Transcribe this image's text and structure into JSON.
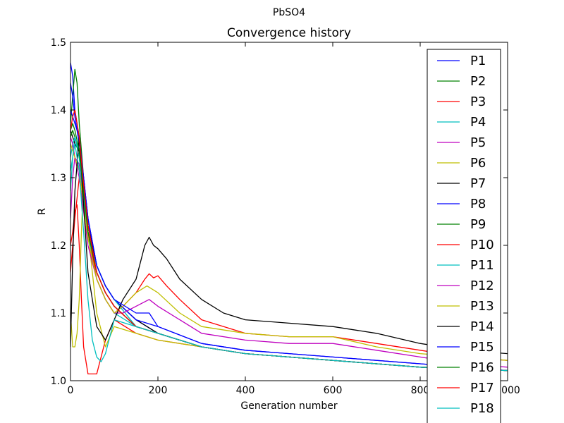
{
  "chart_data": {
    "type": "line",
    "suptitle": "PbSO4",
    "title": "Convergence history",
    "xlabel": "Generation number",
    "ylabel": "R",
    "xlim": [
      0,
      1000
    ],
    "ylim": [
      1.0,
      1.5
    ],
    "xticks": [
      0,
      200,
      400,
      600,
      800,
      1000
    ],
    "xtick_labels": [
      "0",
      "200",
      "400",
      "600",
      "800",
      "1000"
    ],
    "yticks": [
      1.0,
      1.1,
      1.2,
      1.3,
      1.4,
      1.5
    ],
    "ytick_labels": [
      "1.0",
      "1.1",
      "1.2",
      "1.3",
      "1.4",
      "1.5"
    ],
    "grid": false,
    "legend_position": "right, overlapping plot edge",
    "series": [
      {
        "name": "P1",
        "color": "#0000ff",
        "x": [
          0,
          5,
          10,
          20,
          30,
          40,
          60,
          80,
          100,
          150,
          200,
          300,
          400,
          600,
          800,
          1000
        ],
        "y": [
          1.47,
          1.45,
          1.4,
          1.36,
          1.3,
          1.24,
          1.17,
          1.14,
          1.12,
          1.09,
          1.07,
          1.05,
          1.04,
          1.03,
          1.02,
          1.015
        ]
      },
      {
        "name": "P2",
        "color": "#008000",
        "x": [
          0,
          5,
          10,
          15,
          20,
          30,
          40,
          60,
          80,
          100,
          150,
          200,
          300,
          400,
          600,
          800,
          1000
        ],
        "y": [
          1.38,
          1.42,
          1.46,
          1.44,
          1.38,
          1.3,
          1.22,
          1.16,
          1.13,
          1.11,
          1.08,
          1.07,
          1.05,
          1.04,
          1.03,
          1.02,
          1.015
        ]
      },
      {
        "name": "P3",
        "color": "#ff0000",
        "x": [
          0,
          5,
          10,
          15,
          20,
          25,
          30,
          40,
          60,
          80,
          100,
          150,
          200,
          300,
          400,
          600,
          800,
          1000
        ],
        "y": [
          1.2,
          1.22,
          1.25,
          1.26,
          1.2,
          1.12,
          1.05,
          1.01,
          1.01,
          1.06,
          1.09,
          1.07,
          1.06,
          1.05,
          1.04,
          1.03,
          1.02,
          1.015
        ]
      },
      {
        "name": "P4",
        "color": "#00bfbf",
        "x": [
          0,
          5,
          10,
          20,
          30,
          40,
          60,
          80,
          100,
          150,
          200,
          300,
          400,
          600,
          800,
          1000
        ],
        "y": [
          1.28,
          1.33,
          1.36,
          1.34,
          1.28,
          1.22,
          1.15,
          1.12,
          1.1,
          1.08,
          1.07,
          1.05,
          1.04,
          1.03,
          1.02,
          1.015
        ]
      },
      {
        "name": "P5",
        "color": "#bf00bf",
        "x": [
          0,
          5,
          10,
          20,
          30,
          40,
          60,
          80,
          100,
          150,
          200,
          300,
          400,
          600,
          800,
          1000
        ],
        "y": [
          1.24,
          1.3,
          1.33,
          1.32,
          1.27,
          1.22,
          1.16,
          1.13,
          1.11,
          1.08,
          1.07,
          1.05,
          1.04,
          1.03,
          1.02,
          1.015
        ]
      },
      {
        "name": "P6",
        "color": "#bfbf00",
        "x": [
          0,
          5,
          10,
          15,
          20,
          25,
          30,
          40,
          60,
          80,
          100,
          150,
          200,
          300,
          400,
          600,
          800,
          1000
        ],
        "y": [
          1.1,
          1.05,
          1.05,
          1.07,
          1.12,
          1.22,
          1.3,
          1.22,
          1.1,
          1.05,
          1.08,
          1.07,
          1.06,
          1.05,
          1.04,
          1.03,
          1.02,
          1.015
        ]
      },
      {
        "name": "P7",
        "color": "#000000",
        "x": [
          0,
          5,
          10,
          20,
          30,
          40,
          60,
          80,
          100,
          150,
          200,
          300,
          400,
          600,
          800,
          1000
        ],
        "y": [
          1.37,
          1.36,
          1.35,
          1.34,
          1.29,
          1.23,
          1.17,
          1.14,
          1.12,
          1.09,
          1.07,
          1.05,
          1.04,
          1.03,
          1.02,
          1.015
        ]
      },
      {
        "name": "P8",
        "color": "#0000ff",
        "x": [
          0,
          5,
          10,
          20,
          30,
          40,
          60,
          80,
          100,
          150,
          200,
          300,
          400,
          600,
          800,
          1000
        ],
        "y": [
          1.44,
          1.42,
          1.39,
          1.35,
          1.3,
          1.24,
          1.17,
          1.14,
          1.12,
          1.09,
          1.08,
          1.055,
          1.045,
          1.035,
          1.025,
          1.015
        ]
      },
      {
        "name": "P9",
        "color": "#008000",
        "x": [
          0,
          5,
          10,
          20,
          30,
          40,
          60,
          80,
          100,
          150,
          200,
          300,
          400,
          600,
          800,
          1000
        ],
        "y": [
          1.36,
          1.37,
          1.36,
          1.33,
          1.28,
          1.22,
          1.16,
          1.13,
          1.11,
          1.08,
          1.07,
          1.05,
          1.04,
          1.03,
          1.02,
          1.015
        ]
      },
      {
        "name": "P10",
        "color": "#ff0000",
        "x": [
          0,
          5,
          10,
          20,
          30,
          40,
          60,
          80,
          100,
          120,
          150,
          170,
          180,
          190,
          200,
          220,
          250,
          300,
          400,
          500,
          600,
          700,
          800,
          900,
          1000
        ],
        "y": [
          1.16,
          1.2,
          1.24,
          1.3,
          1.28,
          1.22,
          1.15,
          1.12,
          1.1,
          1.11,
          1.13,
          1.15,
          1.158,
          1.152,
          1.155,
          1.14,
          1.12,
          1.09,
          1.07,
          1.065,
          1.065,
          1.055,
          1.045,
          1.035,
          1.03
        ]
      },
      {
        "name": "P11",
        "color": "#00bfbf",
        "x": [
          0,
          5,
          10,
          20,
          30,
          40,
          60,
          80,
          100,
          150,
          200,
          300,
          400,
          600,
          800,
          1000
        ],
        "y": [
          1.33,
          1.35,
          1.36,
          1.33,
          1.27,
          1.21,
          1.17,
          1.14,
          1.12,
          1.08,
          1.07,
          1.05,
          1.04,
          1.03,
          1.02,
          1.015
        ]
      },
      {
        "name": "P12",
        "color": "#bf00bf",
        "x": [
          0,
          5,
          10,
          20,
          30,
          40,
          60,
          80,
          100,
          120,
          150,
          180,
          200,
          250,
          300,
          400,
          500,
          600,
          700,
          800,
          900,
          1000
        ],
        "y": [
          1.36,
          1.35,
          1.33,
          1.3,
          1.25,
          1.2,
          1.15,
          1.12,
          1.1,
          1.1,
          1.11,
          1.12,
          1.11,
          1.09,
          1.07,
          1.06,
          1.055,
          1.055,
          1.045,
          1.035,
          1.025,
          1.02
        ]
      },
      {
        "name": "P13",
        "color": "#bfbf00",
        "x": [
          0,
          5,
          10,
          20,
          30,
          40,
          60,
          80,
          100,
          120,
          150,
          175,
          200,
          250,
          300,
          400,
          500,
          600,
          700,
          800,
          900,
          1000
        ],
        "y": [
          1.35,
          1.34,
          1.33,
          1.31,
          1.26,
          1.21,
          1.15,
          1.12,
          1.1,
          1.11,
          1.13,
          1.14,
          1.13,
          1.1,
          1.08,
          1.07,
          1.065,
          1.065,
          1.05,
          1.04,
          1.035,
          1.03
        ]
      },
      {
        "name": "P14",
        "color": "#000000",
        "x": [
          0,
          5,
          10,
          20,
          30,
          40,
          60,
          80,
          100,
          120,
          150,
          170,
          180,
          190,
          200,
          220,
          250,
          300,
          350,
          400,
          500,
          600,
          700,
          800,
          900,
          1000
        ],
        "y": [
          1.05,
          1.18,
          1.28,
          1.36,
          1.26,
          1.16,
          1.08,
          1.06,
          1.09,
          1.12,
          1.15,
          1.2,
          1.212,
          1.2,
          1.195,
          1.18,
          1.15,
          1.12,
          1.1,
          1.09,
          1.085,
          1.08,
          1.07,
          1.055,
          1.045,
          1.04
        ]
      },
      {
        "name": "P15",
        "color": "#0000ff",
        "x": [
          0,
          5,
          10,
          20,
          30,
          40,
          60,
          80,
          100,
          150,
          180,
          200,
          300,
          400,
          600,
          800,
          1000
        ],
        "y": [
          1.4,
          1.39,
          1.38,
          1.36,
          1.3,
          1.24,
          1.17,
          1.14,
          1.12,
          1.1,
          1.1,
          1.08,
          1.055,
          1.045,
          1.035,
          1.025,
          1.015
        ]
      },
      {
        "name": "P16",
        "color": "#008000",
        "x": [
          0,
          5,
          10,
          20,
          30,
          40,
          60,
          80,
          100,
          150,
          200,
          300,
          400,
          600,
          800,
          1000
        ],
        "y": [
          1.37,
          1.38,
          1.37,
          1.34,
          1.28,
          1.22,
          1.16,
          1.13,
          1.11,
          1.08,
          1.07,
          1.05,
          1.04,
          1.03,
          1.02,
          1.015
        ]
      },
      {
        "name": "P17",
        "color": "#ff0000",
        "x": [
          0,
          5,
          10,
          20,
          30,
          40,
          60,
          80,
          100,
          150,
          200,
          300,
          400,
          600,
          800,
          1000
        ],
        "y": [
          1.37,
          1.39,
          1.4,
          1.36,
          1.29,
          1.23,
          1.16,
          1.13,
          1.11,
          1.08,
          1.07,
          1.05,
          1.04,
          1.03,
          1.02,
          1.015
        ]
      },
      {
        "name": "P18",
        "color": "#00bfbf",
        "x": [
          0,
          5,
          10,
          20,
          30,
          40,
          50,
          60,
          70,
          80,
          100,
          150,
          200,
          300,
          400,
          600,
          800,
          1000
        ],
        "y": [
          1.31,
          1.33,
          1.35,
          1.31,
          1.22,
          1.12,
          1.06,
          1.035,
          1.028,
          1.04,
          1.09,
          1.08,
          1.07,
          1.05,
          1.04,
          1.03,
          1.02,
          1.015
        ]
      }
    ]
  }
}
